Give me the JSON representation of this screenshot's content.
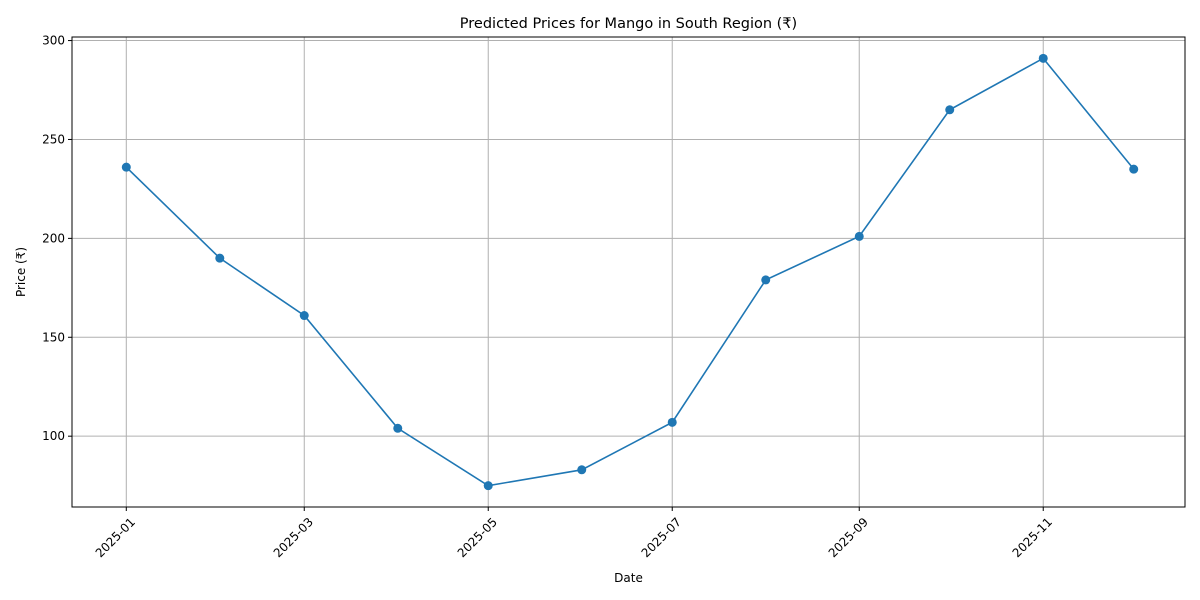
{
  "chart_data": {
    "type": "line",
    "title": "Predicted Prices for Mango in South Region (₹)",
    "xlabel": "Date",
    "ylabel": "Price (₹)",
    "grid": true,
    "line_color": "#1f77b4",
    "marker": "circle",
    "x": [
      "2025-01-01",
      "2025-02-01",
      "2025-03-01",
      "2025-04-01",
      "2025-05-01",
      "2025-06-01",
      "2025-07-01",
      "2025-08-01",
      "2025-09-01",
      "2025-10-01",
      "2025-11-01",
      "2025-12-01"
    ],
    "series": [
      {
        "values": [
          236,
          190,
          161,
          104,
          75,
          83,
          107,
          179,
          201,
          265,
          291,
          235
        ]
      }
    ],
    "x_ticks": [
      "2025-01",
      "2025-03",
      "2025-05",
      "2025-07",
      "2025-09",
      "2025-11"
    ],
    "y_ticks": [
      100,
      150,
      200,
      250,
      300
    ],
    "ylim": [
      64.2,
      301.8
    ],
    "xlim": [
      "2024-12-14",
      "2025-12-18"
    ]
  }
}
